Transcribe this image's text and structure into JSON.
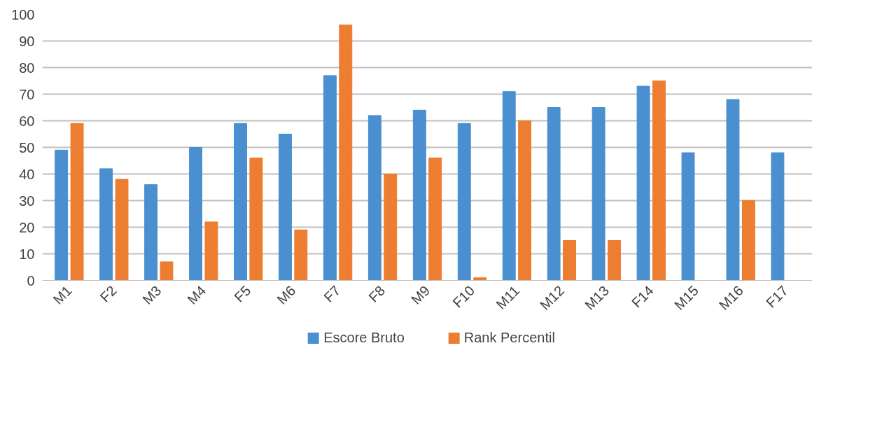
{
  "chart_data": {
    "type": "bar",
    "categories": [
      "M1",
      "F2",
      "M3",
      "M4",
      "F5",
      "M6",
      "F7",
      "F8",
      "M9",
      "F10",
      "M11",
      "M12",
      "M13",
      "F14",
      "M15",
      "M16",
      "F17"
    ],
    "series": [
      {
        "name": "Escore Bruto",
        "color": "#4a8fd0",
        "values": [
          49,
          42,
          36,
          50,
          59,
          55,
          77,
          62,
          64,
          59,
          71,
          65,
          65,
          73,
          48,
          68,
          48
        ]
      },
      {
        "name": "Rank Percentil",
        "color": "#ed7d31",
        "values": [
          59,
          38,
          7,
          22,
          46,
          19,
          96,
          40,
          46,
          1,
          60,
          15,
          15,
          75,
          0,
          30,
          0
        ]
      }
    ],
    "ylim": [
      0,
      100
    ],
    "yticks": [
      0,
      10,
      20,
      30,
      40,
      50,
      60,
      70,
      80,
      90,
      100
    ],
    "grid": "y",
    "legend": "bottom"
  }
}
